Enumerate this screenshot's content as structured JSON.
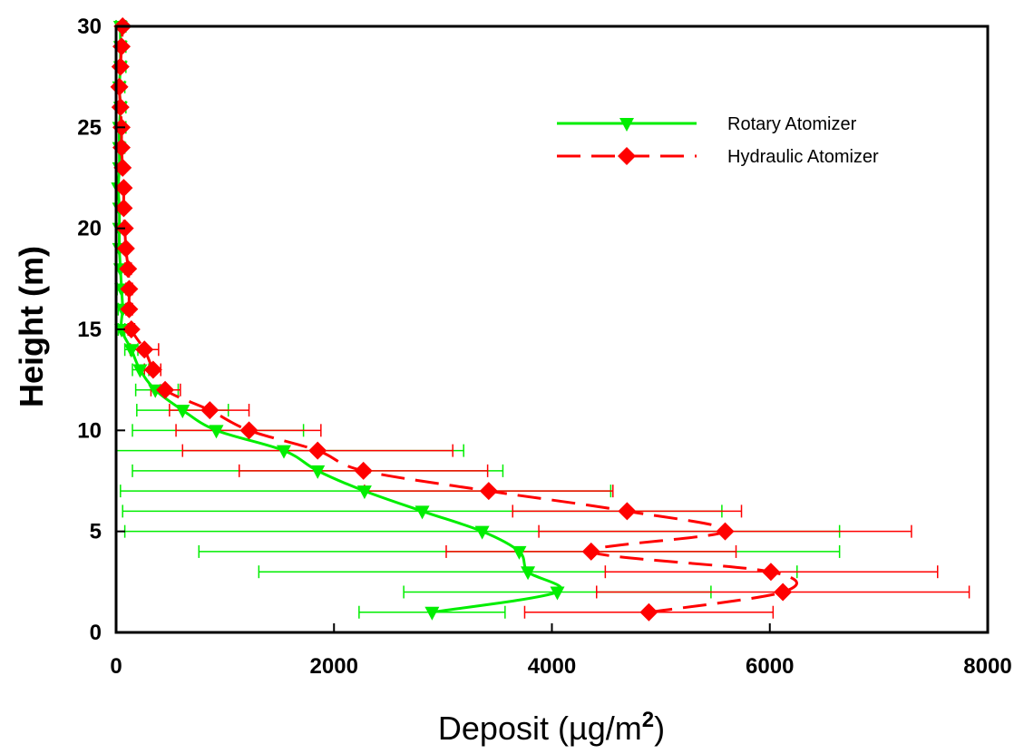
{
  "chart_data": {
    "type": "line",
    "xlabel": "Deposit (µg/m",
    "xlabel_superscript": "2",
    "xlabel_suffix": ")",
    "ylabel": "Height (m)",
    "xlim": [
      0,
      8000
    ],
    "ylim": [
      0,
      30
    ],
    "x_ticks": [
      0,
      2000,
      4000,
      6000,
      8000
    ],
    "x_tick_labels": [
      "0",
      "2000",
      "4000",
      "6000",
      "8000"
    ],
    "y_ticks": [
      0,
      5,
      10,
      15,
      20,
      25,
      30
    ],
    "y_tick_labels": [
      "0",
      "5",
      "10",
      "15",
      "20",
      "25",
      "30"
    ],
    "grid": false,
    "legend_position": "top-right",
    "series": [
      {
        "name": "Rotary Atomizer",
        "color": "#00ee00",
        "marker": "triangle-down",
        "line_style": "solid",
        "points": [
          {
            "y": 1,
            "x": 2900,
            "xerr": [
              2230,
              3570
            ]
          },
          {
            "y": 2,
            "x": 4050,
            "xerr": [
              2640,
              5460
            ]
          },
          {
            "y": 3,
            "x": 3780,
            "xerr": [
              1310,
              6250
            ]
          },
          {
            "y": 4,
            "x": 3700,
            "xerr": [
              760,
              6640
            ]
          },
          {
            "y": 5,
            "x": 3360,
            "xerr": [
              80,
              6640
            ]
          },
          {
            "y": 6,
            "x": 2810,
            "xerr": [
              60,
              5560
            ]
          },
          {
            "y": 7,
            "x": 2280,
            "xerr": [
              40,
              4540
            ]
          },
          {
            "y": 8,
            "x": 1850,
            "xerr": [
              150,
              3550
            ]
          },
          {
            "y": 9,
            "x": 1540,
            "xerr": [
              0,
              3190
            ]
          },
          {
            "y": 10,
            "x": 920,
            "xerr": [
              150,
              1720
            ]
          },
          {
            "y": 11,
            "x": 610,
            "xerr": [
              190,
              1030
            ]
          },
          {
            "y": 12,
            "x": 360,
            "xerr": [
              180,
              570
            ]
          },
          {
            "y": 13,
            "x": 220,
            "xerr": [
              150,
              300
            ]
          },
          {
            "y": 14,
            "x": 140,
            "xerr": [
              80,
              200
            ]
          },
          {
            "y": 15,
            "x": 50,
            "xerr": [
              20,
              80
            ]
          },
          {
            "y": 16,
            "x": 60,
            "xerr": [
              20,
              100
            ]
          },
          {
            "y": 17,
            "x": 50,
            "xerr": [
              10,
              90
            ]
          },
          {
            "y": 18,
            "x": 40,
            "xerr": [
              0,
              90
            ]
          },
          {
            "y": 19,
            "x": 30,
            "xerr": [
              0,
              70
            ]
          },
          {
            "y": 20,
            "x": 30,
            "xerr": [
              0,
              70
            ]
          },
          {
            "y": 21,
            "x": 30,
            "xerr": [
              0,
              80
            ]
          },
          {
            "y": 22,
            "x": 20,
            "xerr": [
              0,
              60
            ]
          },
          {
            "y": 23,
            "x": 30,
            "xerr": [
              0,
              80
            ]
          },
          {
            "y": 24,
            "x": 30,
            "xerr": [
              0,
              80
            ]
          },
          {
            "y": 25,
            "x": 30,
            "xerr": [
              0,
              90
            ]
          },
          {
            "y": 26,
            "x": 40,
            "xerr": [
              0,
              90
            ]
          },
          {
            "y": 27,
            "x": 30,
            "xerr": [
              0,
              80
            ]
          },
          {
            "y": 28,
            "x": 40,
            "xerr": [
              0,
              90
            ]
          },
          {
            "y": 29,
            "x": 40,
            "xerr": [
              0,
              90
            ]
          },
          {
            "y": 30,
            "x": 40,
            "xerr": [
              0,
              90
            ]
          }
        ]
      },
      {
        "name": "Hydraulic Atomizer",
        "color": "#ff0000",
        "marker": "diamond",
        "line_style": "dashed",
        "points": [
          {
            "y": 1,
            "x": 4890,
            "xerr": [
              3750,
              6030
            ]
          },
          {
            "y": 2,
            "x": 6120,
            "xerr": [
              4410,
              7830
            ]
          },
          {
            "y": 3,
            "x": 6010,
            "xerr": [
              4490,
              7540
            ]
          },
          {
            "y": 4,
            "x": 4360,
            "xerr": [
              3030,
              5690
            ]
          },
          {
            "y": 5,
            "x": 5590,
            "xerr": [
              3880,
              7300
            ]
          },
          {
            "y": 6,
            "x": 4690,
            "xerr": [
              3640,
              5740
            ]
          },
          {
            "y": 7,
            "x": 3420,
            "xerr": [
              2280,
              4560
            ]
          },
          {
            "y": 8,
            "x": 2270,
            "xerr": [
              1130,
              3410
            ]
          },
          {
            "y": 9,
            "x": 1850,
            "xerr": [
              610,
              3090
            ]
          },
          {
            "y": 10,
            "x": 1220,
            "xerr": [
              550,
              1880
            ]
          },
          {
            "y": 11,
            "x": 860,
            "xerr": [
              490,
              1220
            ]
          },
          {
            "y": 12,
            "x": 450,
            "xerr": [
              320,
              590
            ]
          },
          {
            "y": 13,
            "x": 340,
            "xerr": [
              260,
              410
            ]
          },
          {
            "y": 14,
            "x": 260,
            "xerr": [
              130,
              390
            ]
          },
          {
            "y": 15,
            "x": 140,
            "xerr": [
              110,
              170
            ]
          },
          {
            "y": 16,
            "x": 120,
            "xerr": [
              90,
              150
            ]
          },
          {
            "y": 17,
            "x": 120,
            "xerr": [
              90,
              150
            ]
          },
          {
            "y": 18,
            "x": 110,
            "xerr": [
              80,
              140
            ]
          },
          {
            "y": 19,
            "x": 90,
            "xerr": [
              70,
              110
            ]
          },
          {
            "y": 20,
            "x": 80,
            "xerr": [
              60,
              100
            ]
          },
          {
            "y": 21,
            "x": 70,
            "xerr": [
              50,
              90
            ]
          },
          {
            "y": 22,
            "x": 70,
            "xerr": [
              50,
              90
            ]
          },
          {
            "y": 23,
            "x": 60,
            "xerr": [
              40,
              80
            ]
          },
          {
            "y": 24,
            "x": 50,
            "xerr": [
              30,
              70
            ]
          },
          {
            "y": 25,
            "x": 50,
            "xerr": [
              30,
              70
            ]
          },
          {
            "y": 26,
            "x": 40,
            "xerr": [
              20,
              60
            ]
          },
          {
            "y": 27,
            "x": 30,
            "xerr": [
              10,
              50
            ]
          },
          {
            "y": 28,
            "x": 40,
            "xerr": [
              20,
              60
            ]
          },
          {
            "y": 29,
            "x": 50,
            "xerr": [
              30,
              70
            ]
          },
          {
            "y": 30,
            "x": 60,
            "xerr": [
              40,
              80
            ]
          }
        ]
      }
    ]
  }
}
